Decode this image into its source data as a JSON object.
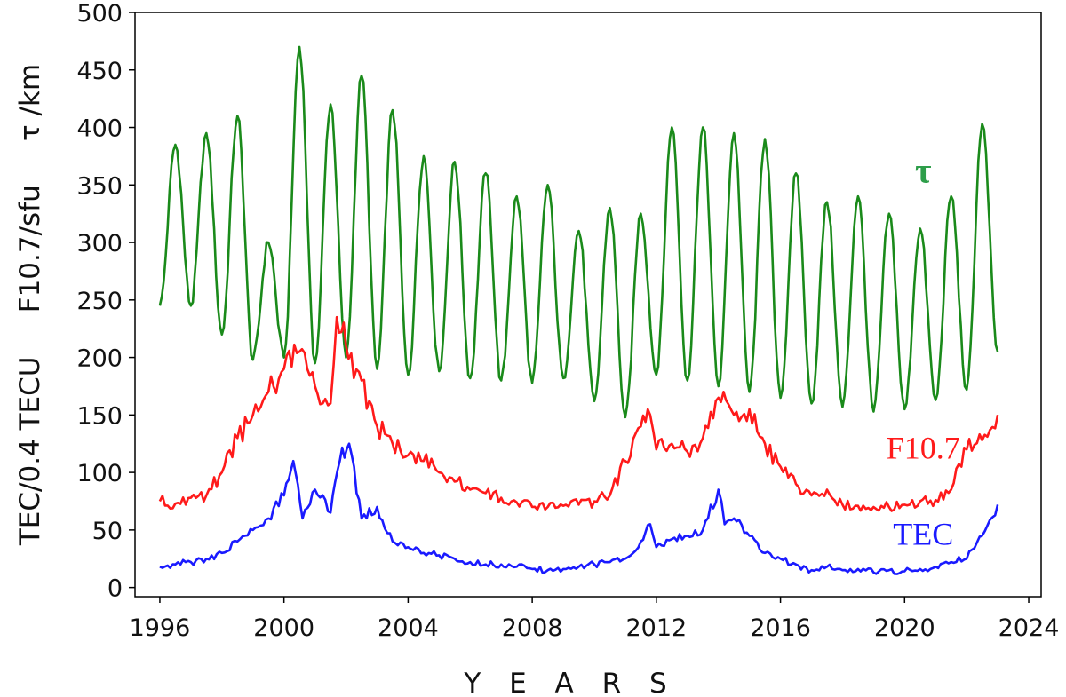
{
  "chart_data": {
    "type": "line",
    "xlabel": "Y E A R S",
    "ylabel": "TEC/0.4 TECU     F10.7/sfu     τ /km",
    "xlim": [
      1995.2,
      2024.4
    ],
    "ylim": [
      -8,
      500
    ],
    "x_ticks": [
      1996,
      2000,
      2004,
      2008,
      2012,
      2016,
      2020,
      2024
    ],
    "y_ticks": [
      0,
      50,
      100,
      150,
      200,
      250,
      300,
      350,
      400,
      450,
      500
    ],
    "x_tick_labels": [
      "1996",
      "2000",
      "2004",
      "2008",
      "2012",
      "2016",
      "2020",
      "2024"
    ],
    "y_tick_labels": [
      "0",
      "50",
      "100",
      "150",
      "200",
      "250",
      "300",
      "350",
      "400",
      "450",
      "500"
    ],
    "grid": false,
    "series": [
      {
        "name": "τ",
        "color": "#1a8a1a",
        "label_color": "#2e9e4a",
        "kind": "seasonal",
        "x": [
          1996.0,
          1996.5,
          1997.0,
          1997.5,
          1998.0,
          1998.5,
          1999.0,
          1999.5,
          2000.0,
          2000.5,
          2001.0,
          2001.5,
          2002.0,
          2002.5,
          2003.0,
          2003.5,
          2004.0,
          2004.5,
          2005.0,
          2005.5,
          2006.0,
          2006.5,
          2007.0,
          2007.5,
          2008.0,
          2008.5,
          2009.0,
          2009.5,
          2010.0,
          2010.5,
          2011.0,
          2011.5,
          2012.0,
          2012.5,
          2013.0,
          2013.5,
          2014.0,
          2014.5,
          2015.0,
          2015.5,
          2016.0,
          2016.5,
          2017.0,
          2017.5,
          2018.0,
          2018.5,
          2019.0,
          2019.5,
          2020.0,
          2020.5,
          2021.0,
          2021.5,
          2022.0,
          2022.5,
          2023.0
        ],
        "y": [
          245,
          385,
          245,
          395,
          220,
          410,
          198,
          300,
          200,
          470,
          195,
          420,
          200,
          445,
          190,
          415,
          185,
          375,
          188,
          370,
          182,
          360,
          180,
          340,
          178,
          350,
          182,
          310,
          162,
          330,
          148,
          325,
          185,
          400,
          180,
          400,
          175,
          395,
          170,
          390,
          165,
          360,
          160,
          335,
          157,
          340,
          153,
          325,
          155,
          312,
          163,
          340,
          172,
          403,
          205
        ]
      },
      {
        "name": "F10.7",
        "color": "#ff1a1a",
        "x": [
          1996.0,
          1996.5,
          1997.0,
          1997.5,
          1998.0,
          1998.5,
          1999.0,
          1999.5,
          2000.0,
          2000.5,
          2001.0,
          2001.5,
          2001.7,
          2002.0,
          2002.5,
          2003.0,
          2003.5,
          2004.0,
          2004.5,
          2005.0,
          2005.5,
          2006.0,
          2006.5,
          2007.0,
          2007.5,
          2008.0,
          2008.5,
          2009.0,
          2009.5,
          2010.0,
          2010.5,
          2011.0,
          2011.5,
          2011.8,
          2012.0,
          2012.5,
          2013.0,
          2013.5,
          2014.0,
          2014.5,
          2015.0,
          2015.5,
          2016.0,
          2016.5,
          2017.0,
          2017.5,
          2018.0,
          2018.5,
          2019.0,
          2019.5,
          2020.0,
          2020.5,
          2021.0,
          2021.5,
          2022.0,
          2022.5,
          2023.0
        ],
        "y": [
          75,
          73,
          78,
          80,
          100,
          130,
          150,
          170,
          190,
          205,
          175,
          160,
          235,
          210,
          180,
          140,
          125,
          115,
          110,
          100,
          92,
          85,
          82,
          78,
          74,
          70,
          70,
          71,
          72,
          75,
          80,
          110,
          140,
          150,
          120,
          125,
          118,
          130,
          165,
          150,
          155,
          125,
          105,
          90,
          80,
          85,
          72,
          71,
          70,
          70,
          72,
          75,
          76,
          85,
          120,
          128,
          150
        ]
      },
      {
        "name": "TEC",
        "color": "#1a1aff",
        "x": [
          1996.0,
          1996.5,
          1997.0,
          1997.5,
          1998.0,
          1998.5,
          1999.0,
          1999.5,
          2000.0,
          2000.3,
          2000.6,
          2001.0,
          2001.5,
          2001.8,
          2002.1,
          2002.5,
          2003.0,
          2003.5,
          2004.0,
          2004.5,
          2005.0,
          2005.5,
          2006.0,
          2006.5,
          2007.0,
          2007.5,
          2008.0,
          2008.5,
          2009.0,
          2009.5,
          2010.0,
          2010.5,
          2011.0,
          2011.5,
          2011.8,
          2012.0,
          2012.5,
          2013.0,
          2013.5,
          2014.0,
          2014.2,
          2014.5,
          2015.0,
          2015.5,
          2016.0,
          2016.5,
          2017.0,
          2017.5,
          2018.0,
          2018.5,
          2019.0,
          2019.5,
          2020.0,
          2020.5,
          2021.0,
          2021.5,
          2022.0,
          2022.5,
          2023.0
        ],
        "y": [
          18,
          20,
          22,
          25,
          30,
          40,
          50,
          60,
          80,
          110,
          60,
          85,
          65,
          110,
          125,
          60,
          70,
          40,
          35,
          30,
          28,
          25,
          22,
          20,
          20,
          18,
          16,
          15,
          16,
          18,
          20,
          22,
          25,
          40,
          55,
          35,
          42,
          45,
          50,
          85,
          55,
          60,
          45,
          30,
          25,
          20,
          15,
          18,
          15,
          16,
          13,
          15,
          14,
          16,
          18,
          22,
          25,
          45,
          72
        ]
      }
    ],
    "annotations": [
      {
        "text": "τ",
        "x": 2020.6,
        "y": 352,
        "series": "τ"
      },
      {
        "text": "F10.7",
        "x": 2020.6,
        "y": 112,
        "series": "F10.7"
      },
      {
        "text": "TEC",
        "x": 2020.6,
        "y": 37,
        "series": "TEC"
      }
    ]
  }
}
